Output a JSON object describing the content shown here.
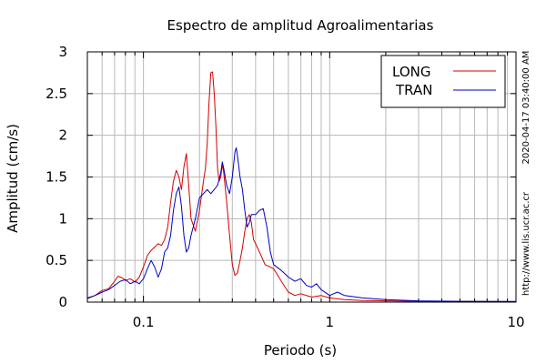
{
  "chart_data": {
    "type": "line",
    "title": "Espectro de amplitud Agroalimentarias",
    "xlabel": "Periodo (s)",
    "ylabel": "Amplitud (cm/s)",
    "xscale": "log",
    "xlim": [
      0.05,
      10
    ],
    "ylim": [
      0,
      3
    ],
    "x_ticks": [
      {
        "value": 0.1,
        "label": "0.1"
      },
      {
        "value": 1,
        "label": "1"
      },
      {
        "value": 10,
        "label": "10"
      }
    ],
    "y_ticks": [
      {
        "value": 0,
        "label": "0"
      },
      {
        "value": 0.5,
        "label": "0.5"
      },
      {
        "value": 1,
        "label": "1"
      },
      {
        "value": 1.5,
        "label": "1.5"
      },
      {
        "value": 2,
        "label": "2"
      },
      {
        "value": 2.5,
        "label": "2.5"
      },
      {
        "value": 3,
        "label": "3"
      }
    ],
    "grid": true,
    "legend_position": "top-right",
    "side_text": {
      "timestamp": "2020-04-17 03:40:00 AM",
      "url": "http://www.lis.ucr.ac.cr"
    },
    "series": [
      {
        "name": "LONG",
        "color": "#d40000",
        "points": [
          [
            0.05,
            0.04
          ],
          [
            0.055,
            0.08
          ],
          [
            0.06,
            0.14
          ],
          [
            0.065,
            0.16
          ],
          [
            0.07,
            0.25
          ],
          [
            0.073,
            0.31
          ],
          [
            0.077,
            0.29
          ],
          [
            0.08,
            0.26
          ],
          [
            0.085,
            0.28
          ],
          [
            0.09,
            0.24
          ],
          [
            0.095,
            0.3
          ],
          [
            0.1,
            0.42
          ],
          [
            0.105,
            0.56
          ],
          [
            0.11,
            0.62
          ],
          [
            0.115,
            0.66
          ],
          [
            0.12,
            0.7
          ],
          [
            0.125,
            0.68
          ],
          [
            0.13,
            0.75
          ],
          [
            0.135,
            0.9
          ],
          [
            0.14,
            1.2
          ],
          [
            0.145,
            1.45
          ],
          [
            0.15,
            1.58
          ],
          [
            0.155,
            1.5
          ],
          [
            0.16,
            1.35
          ],
          [
            0.165,
            1.62
          ],
          [
            0.17,
            1.78
          ],
          [
            0.175,
            1.4
          ],
          [
            0.18,
            1.0
          ],
          [
            0.19,
            0.85
          ],
          [
            0.2,
            1.1
          ],
          [
            0.21,
            1.45
          ],
          [
            0.215,
            1.6
          ],
          [
            0.22,
            1.9
          ],
          [
            0.225,
            2.4
          ],
          [
            0.23,
            2.75
          ],
          [
            0.235,
            2.76
          ],
          [
            0.24,
            2.5
          ],
          [
            0.245,
            2.1
          ],
          [
            0.25,
            1.6
          ],
          [
            0.255,
            1.45
          ],
          [
            0.26,
            1.5
          ],
          [
            0.265,
            1.65
          ],
          [
            0.27,
            1.55
          ],
          [
            0.28,
            1.2
          ],
          [
            0.29,
            0.8
          ],
          [
            0.3,
            0.45
          ],
          [
            0.31,
            0.32
          ],
          [
            0.32,
            0.35
          ],
          [
            0.33,
            0.5
          ],
          [
            0.34,
            0.65
          ],
          [
            0.35,
            0.85
          ],
          [
            0.36,
            1.0
          ],
          [
            0.37,
            1.05
          ],
          [
            0.38,
            0.95
          ],
          [
            0.39,
            0.75
          ],
          [
            0.4,
            0.7
          ],
          [
            0.42,
            0.6
          ],
          [
            0.45,
            0.45
          ],
          [
            0.5,
            0.4
          ],
          [
            0.55,
            0.25
          ],
          [
            0.6,
            0.12
          ],
          [
            0.65,
            0.08
          ],
          [
            0.7,
            0.1
          ],
          [
            0.8,
            0.06
          ],
          [
            0.9,
            0.08
          ],
          [
            1,
            0.05
          ],
          [
            1.2,
            0.03
          ],
          [
            1.5,
            0.02
          ],
          [
            2,
            0.015
          ],
          [
            3,
            0.01
          ],
          [
            5,
            0.008
          ],
          [
            10,
            0.005
          ]
        ]
      },
      {
        "name": "TRAN",
        "color": "#0000c0",
        "points": [
          [
            0.05,
            0.05
          ],
          [
            0.055,
            0.08
          ],
          [
            0.06,
            0.12
          ],
          [
            0.065,
            0.15
          ],
          [
            0.07,
            0.2
          ],
          [
            0.075,
            0.25
          ],
          [
            0.08,
            0.27
          ],
          [
            0.085,
            0.22
          ],
          [
            0.09,
            0.25
          ],
          [
            0.095,
            0.22
          ],
          [
            0.1,
            0.28
          ],
          [
            0.105,
            0.4
          ],
          [
            0.11,
            0.5
          ],
          [
            0.115,
            0.42
          ],
          [
            0.12,
            0.3
          ],
          [
            0.125,
            0.4
          ],
          [
            0.13,
            0.6
          ],
          [
            0.135,
            0.65
          ],
          [
            0.14,
            0.8
          ],
          [
            0.145,
            1.1
          ],
          [
            0.15,
            1.3
          ],
          [
            0.155,
            1.38
          ],
          [
            0.16,
            1.15
          ],
          [
            0.165,
            0.8
          ],
          [
            0.17,
            0.6
          ],
          [
            0.175,
            0.65
          ],
          [
            0.18,
            0.8
          ],
          [
            0.19,
            1.0
          ],
          [
            0.2,
            1.25
          ],
          [
            0.21,
            1.3
          ],
          [
            0.22,
            1.35
          ],
          [
            0.23,
            1.3
          ],
          [
            0.24,
            1.35
          ],
          [
            0.25,
            1.4
          ],
          [
            0.26,
            1.55
          ],
          [
            0.265,
            1.68
          ],
          [
            0.27,
            1.6
          ],
          [
            0.28,
            1.4
          ],
          [
            0.29,
            1.3
          ],
          [
            0.3,
            1.5
          ],
          [
            0.31,
            1.8
          ],
          [
            0.315,
            1.85
          ],
          [
            0.32,
            1.75
          ],
          [
            0.33,
            1.5
          ],
          [
            0.34,
            1.35
          ],
          [
            0.35,
            1.1
          ],
          [
            0.36,
            0.9
          ],
          [
            0.37,
            0.95
          ],
          [
            0.38,
            1.05
          ],
          [
            0.4,
            1.05
          ],
          [
            0.42,
            1.1
          ],
          [
            0.44,
            1.12
          ],
          [
            0.46,
            0.9
          ],
          [
            0.48,
            0.6
          ],
          [
            0.5,
            0.45
          ],
          [
            0.55,
            0.38
          ],
          [
            0.6,
            0.3
          ],
          [
            0.65,
            0.25
          ],
          [
            0.7,
            0.28
          ],
          [
            0.75,
            0.2
          ],
          [
            0.8,
            0.18
          ],
          [
            0.85,
            0.22
          ],
          [
            0.9,
            0.15
          ],
          [
            1,
            0.08
          ],
          [
            1.1,
            0.12
          ],
          [
            1.2,
            0.08
          ],
          [
            1.5,
            0.05
          ],
          [
            2,
            0.03
          ],
          [
            3,
            0.015
          ],
          [
            5,
            0.01
          ],
          [
            10,
            0.008
          ]
        ]
      }
    ]
  }
}
